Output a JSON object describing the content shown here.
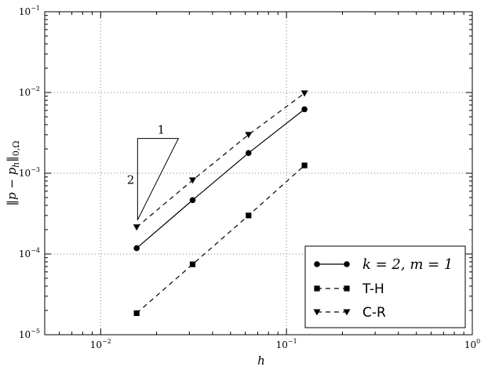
{
  "chart_data": {
    "type": "line",
    "xscale": "log",
    "yscale": "log",
    "xlim": [
      0.005,
      1
    ],
    "ylim": [
      1e-05,
      0.1
    ],
    "xlabel": "h",
    "ylabel": "||p − p_h||_{0,Ω}",
    "grid": true,
    "legend_position": "lower-right",
    "x_ticks": [
      {
        "base": "10",
        "exp": "−2",
        "value": 0.01
      },
      {
        "base": "10",
        "exp": "−1",
        "value": 0.1
      },
      {
        "base": "10",
        "exp": "0",
        "value": 1
      }
    ],
    "y_ticks": [
      {
        "base": "10",
        "exp": "−5",
        "value": 1e-05
      },
      {
        "base": "10",
        "exp": "−4",
        "value": 0.0001
      },
      {
        "base": "10",
        "exp": "−3",
        "value": 0.001
      },
      {
        "base": "10",
        "exp": "−2",
        "value": 0.01
      },
      {
        "base": "10",
        "exp": "−1",
        "value": 0.1
      }
    ],
    "series": [
      {
        "name": "k = 2, m = 1",
        "marker": "circle",
        "linestyle": "solid",
        "x": [
          0.015625,
          0.03125,
          0.0625,
          0.125
        ],
        "y": [
          0.000118,
          0.000465,
          0.00178,
          0.0062
        ]
      },
      {
        "name": "T-H",
        "marker": "square",
        "linestyle": "dashed",
        "x": [
          0.015625,
          0.03125,
          0.0625,
          0.125
        ],
        "y": [
          1.85e-05,
          7.45e-05,
          0.0003,
          0.00125
        ]
      },
      {
        "name": "C-R",
        "marker": "triangle-down",
        "linestyle": "dashed",
        "x": [
          0.015625,
          0.03125,
          0.0625,
          0.125
        ],
        "y": [
          0.000215,
          0.00082,
          0.003,
          0.0098
        ]
      }
    ],
    "slope_triangle": {
      "run_label": "1",
      "rise_label": "2",
      "x0": 0.0158,
      "x1": 0.0262,
      "y_top": 0.0027
    },
    "colors": {
      "line": "#000000",
      "grid": "#808080",
      "background": "#ffffff"
    }
  }
}
